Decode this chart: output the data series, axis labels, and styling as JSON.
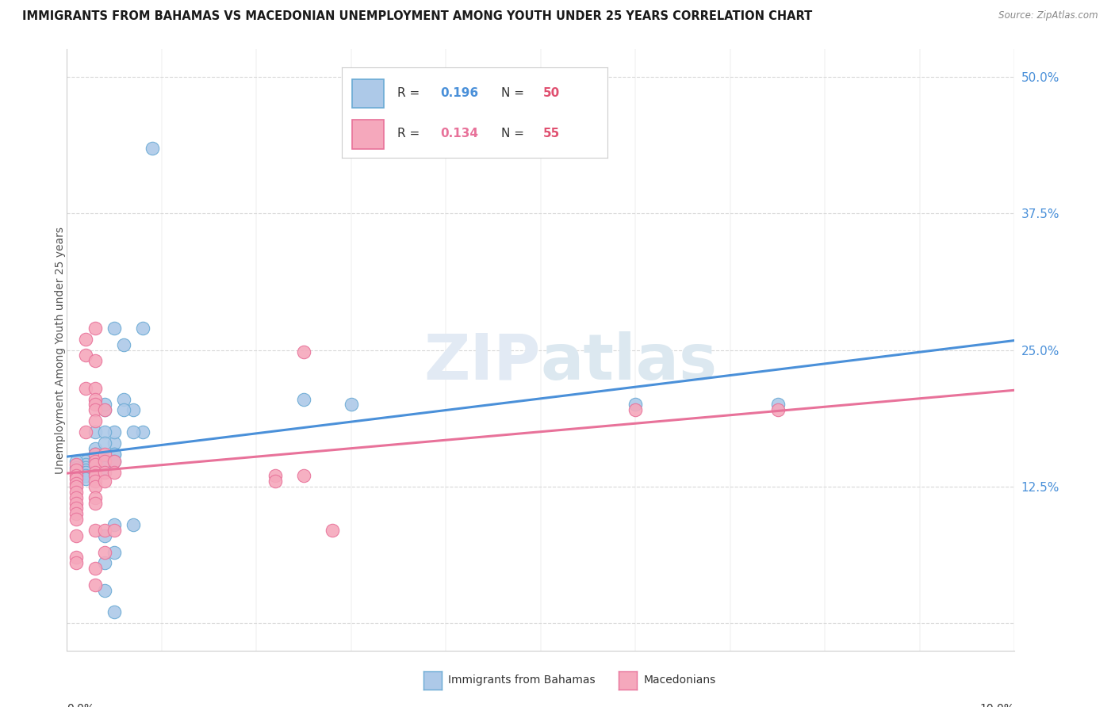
{
  "title": "IMMIGRANTS FROM BAHAMAS VS MACEDONIAN UNEMPLOYMENT AMONG YOUTH UNDER 25 YEARS CORRELATION CHART",
  "source": "Source: ZipAtlas.com",
  "ylabel": "Unemployment Among Youth under 25 years",
  "yticks": [
    0.0,
    0.125,
    0.25,
    0.375,
    0.5
  ],
  "ytick_labels": [
    "",
    "12.5%",
    "25.0%",
    "37.5%",
    "50.0%"
  ],
  "xlim": [
    0.0,
    0.1
  ],
  "ylim": [
    -0.025,
    0.525
  ],
  "blue_line_color": "#4a90d9",
  "pink_line_color": "#e8729a",
  "blue_dot_facecolor": "#adc9e8",
  "blue_dot_edgecolor": "#6aaad4",
  "pink_dot_facecolor": "#f5a8bc",
  "pink_dot_edgecolor": "#e8729a",
  "tick_color": "#4a90d9",
  "grid_color": "#d8d8d8",
  "watermark_color": "#e2eaf4",
  "background_color": "#ffffff",
  "axis_label_color": "#555555",
  "blue_scatter": [
    [
      0.009,
      0.435
    ],
    [
      0.005,
      0.27
    ],
    [
      0.006,
      0.255
    ],
    [
      0.006,
      0.205
    ],
    [
      0.007,
      0.195
    ],
    [
      0.008,
      0.175
    ],
    [
      0.008,
      0.27
    ],
    [
      0.005,
      0.165
    ],
    [
      0.004,
      0.195
    ],
    [
      0.005,
      0.175
    ],
    [
      0.003,
      0.175
    ],
    [
      0.003,
      0.16
    ],
    [
      0.003,
      0.155
    ],
    [
      0.003,
      0.15
    ],
    [
      0.002,
      0.148
    ],
    [
      0.002,
      0.145
    ],
    [
      0.002,
      0.142
    ],
    [
      0.002,
      0.14
    ],
    [
      0.002,
      0.138
    ],
    [
      0.002,
      0.135
    ],
    [
      0.002,
      0.132
    ],
    [
      0.003,
      0.155
    ],
    [
      0.003,
      0.15
    ],
    [
      0.003,
      0.148
    ],
    [
      0.003,
      0.145
    ],
    [
      0.004,
      0.2
    ],
    [
      0.004,
      0.175
    ],
    [
      0.004,
      0.165
    ],
    [
      0.004,
      0.15
    ],
    [
      0.004,
      0.148
    ],
    [
      0.004,
      0.145
    ],
    [
      0.004,
      0.142
    ],
    [
      0.004,
      0.08
    ],
    [
      0.004,
      0.055
    ],
    [
      0.004,
      0.03
    ],
    [
      0.005,
      0.155
    ],
    [
      0.005,
      0.155
    ],
    [
      0.005,
      0.148
    ],
    [
      0.005,
      0.09
    ],
    [
      0.005,
      0.065
    ],
    [
      0.005,
      0.01
    ],
    [
      0.006,
      0.195
    ],
    [
      0.007,
      0.175
    ],
    [
      0.007,
      0.09
    ],
    [
      0.001,
      0.148
    ],
    [
      0.001,
      0.142
    ],
    [
      0.025,
      0.205
    ],
    [
      0.03,
      0.2
    ],
    [
      0.06,
      0.2
    ],
    [
      0.075,
      0.2
    ]
  ],
  "pink_scatter": [
    [
      0.001,
      0.145
    ],
    [
      0.001,
      0.14
    ],
    [
      0.001,
      0.135
    ],
    [
      0.001,
      0.132
    ],
    [
      0.001,
      0.128
    ],
    [
      0.001,
      0.125
    ],
    [
      0.001,
      0.12
    ],
    [
      0.001,
      0.115
    ],
    [
      0.001,
      0.11
    ],
    [
      0.001,
      0.105
    ],
    [
      0.001,
      0.1
    ],
    [
      0.001,
      0.095
    ],
    [
      0.001,
      0.08
    ],
    [
      0.001,
      0.06
    ],
    [
      0.001,
      0.055
    ],
    [
      0.002,
      0.26
    ],
    [
      0.002,
      0.245
    ],
    [
      0.002,
      0.215
    ],
    [
      0.003,
      0.27
    ],
    [
      0.003,
      0.24
    ],
    [
      0.003,
      0.215
    ],
    [
      0.003,
      0.205
    ],
    [
      0.003,
      0.2
    ],
    [
      0.003,
      0.195
    ],
    [
      0.003,
      0.185
    ],
    [
      0.003,
      0.155
    ],
    [
      0.003,
      0.148
    ],
    [
      0.003,
      0.145
    ],
    [
      0.003,
      0.138
    ],
    [
      0.003,
      0.135
    ],
    [
      0.003,
      0.13
    ],
    [
      0.003,
      0.125
    ],
    [
      0.003,
      0.115
    ],
    [
      0.003,
      0.11
    ],
    [
      0.003,
      0.085
    ],
    [
      0.003,
      0.05
    ],
    [
      0.003,
      0.035
    ],
    [
      0.004,
      0.195
    ],
    [
      0.004,
      0.155
    ],
    [
      0.004,
      0.148
    ],
    [
      0.004,
      0.138
    ],
    [
      0.004,
      0.13
    ],
    [
      0.004,
      0.085
    ],
    [
      0.004,
      0.065
    ],
    [
      0.005,
      0.148
    ],
    [
      0.005,
      0.138
    ],
    [
      0.005,
      0.085
    ],
    [
      0.022,
      0.135
    ],
    [
      0.022,
      0.13
    ],
    [
      0.025,
      0.248
    ],
    [
      0.025,
      0.135
    ],
    [
      0.028,
      0.085
    ],
    [
      0.06,
      0.195
    ],
    [
      0.075,
      0.195
    ],
    [
      0.002,
      0.175
    ]
  ]
}
